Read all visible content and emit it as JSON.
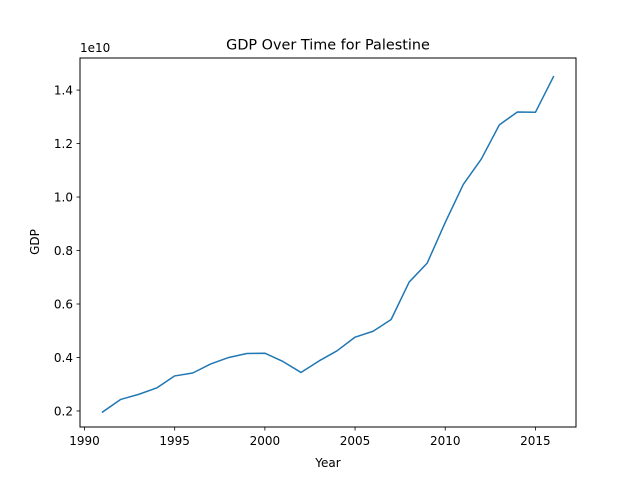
{
  "chart_data": {
    "type": "line",
    "title": "GDP Over Time for Palestine",
    "xlabel": "Year",
    "ylabel": "GDP",
    "y_multiplier_label": "1e10",
    "xlim": [
      1989.75,
      2017.25
    ],
    "ylim": [
      0.14,
      1.52
    ],
    "x_ticks": [
      1990,
      1995,
      2000,
      2005,
      2010,
      2015
    ],
    "y_ticks": [
      0.2,
      0.4,
      0.6,
      0.8,
      1.0,
      1.2,
      1.4
    ],
    "y_tick_labels": [
      "0.2",
      "0.4",
      "0.6",
      "0.8",
      "1.0",
      "1.2",
      "1.4"
    ],
    "grid": false,
    "series": [
      {
        "color": "#1f77b4",
        "x": [
          1991,
          1992,
          1993,
          1994,
          1995,
          1996,
          1997,
          1998,
          1999,
          2000,
          2001,
          2002,
          2003,
          2004,
          2005,
          2006,
          2007,
          2008,
          2009,
          2010,
          2011,
          2012,
          2013,
          2014,
          2015,
          2016
        ],
        "values": [
          0.196,
          0.243,
          0.262,
          0.286,
          0.331,
          0.342,
          0.376,
          0.4,
          0.415,
          0.416,
          0.385,
          0.344,
          0.387,
          0.425,
          0.476,
          0.498,
          0.542,
          0.682,
          0.753,
          0.905,
          1.047,
          1.142,
          1.27,
          1.318,
          1.317,
          1.45
        ]
      }
    ]
  }
}
